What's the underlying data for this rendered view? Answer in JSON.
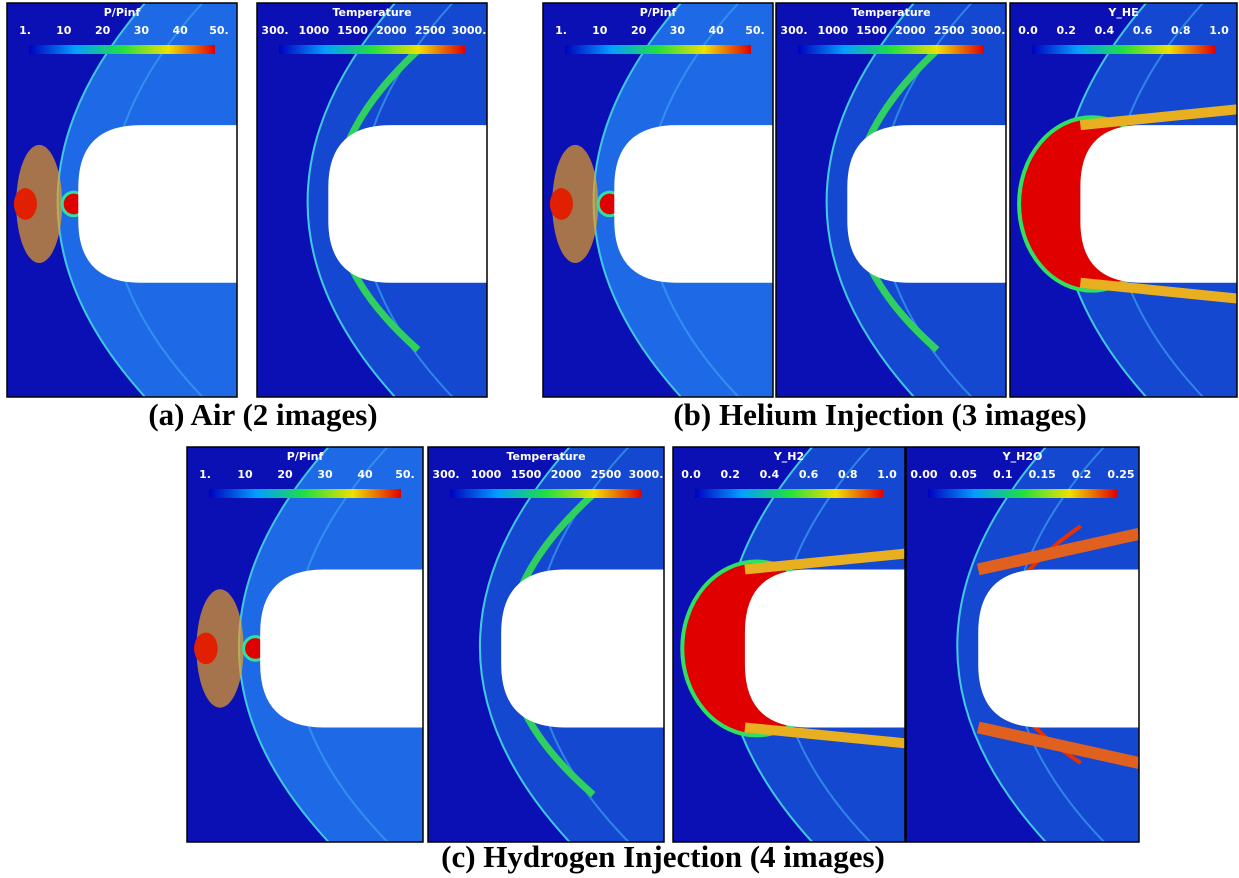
{
  "figure": {
    "groups": [
      {
        "caption": "(a) Air (2 images)",
        "panels": [
          {
            "title": "P/Pinf",
            "ticks": [
              "1.",
              "10",
              "20",
              "30",
              "40",
              "50."
            ]
          },
          {
            "title": "Temperature",
            "ticks": [
              "300.",
              "1000",
              "1500",
              "2000",
              "2500",
              "3000."
            ]
          }
        ]
      },
      {
        "caption": "(b) Helium Injection (3 images)",
        "panels": [
          {
            "title": "P/Pinf",
            "ticks": [
              "1.",
              "10",
              "20",
              "30",
              "40",
              "50."
            ]
          },
          {
            "title": "Temperature",
            "ticks": [
              "300.",
              "1000",
              "1500",
              "2000",
              "2500",
              "3000."
            ]
          },
          {
            "title": "Y_HE",
            "ticks": [
              "0.0",
              "0.2",
              "0.4",
              "0.6",
              "0.8",
              "1.0"
            ]
          }
        ]
      },
      {
        "caption": "(c) Hydrogen Injection (4 images)",
        "panels": [
          {
            "title": "P/Pinf",
            "ticks": [
              "1.",
              "10",
              "20",
              "30",
              "40",
              "50."
            ]
          },
          {
            "title": "Temperature",
            "ticks": [
              "300.",
              "1000",
              "1500",
              "2000",
              "2500",
              "3000."
            ]
          },
          {
            "title": "Y_H2",
            "ticks": [
              "0.0",
              "0.2",
              "0.4",
              "0.6",
              "0.8",
              "1.0"
            ]
          },
          {
            "title": "Y_H2O",
            "ticks": [
              "0.00",
              "0.05",
              "0.1",
              "0.15",
              "0.2",
              "0.25"
            ]
          }
        ]
      }
    ]
  }
}
